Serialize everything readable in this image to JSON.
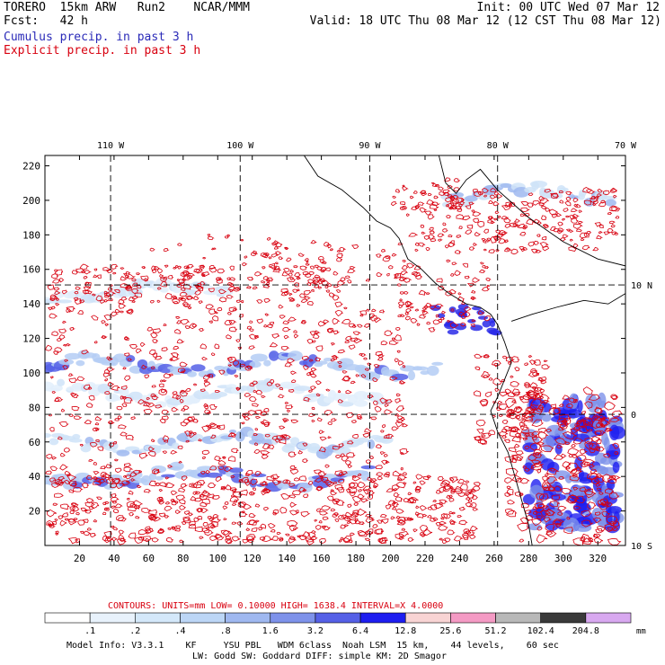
{
  "header": {
    "left_line1": "TORERO  15km ARW   Run2    NCAR/MMM",
    "left_line2": "Fcst:   42 h",
    "right_line1": "Init: 00 UTC Wed 07 Mar 12",
    "right_line2": "Valid: 18 UTC Thu 08 Mar 12 (12 CST Thu 08 Mar 12)",
    "legend_cumulus": "Cumulus precip. in past 3 h",
    "legend_explicit": "Explicit precip. in past 3 h",
    "cumulus_color": "#2a2ab8",
    "explicit_color": "#d8000f"
  },
  "chart_data": {
    "type": "heatmap",
    "title": "",
    "x_ticks": [
      "20",
      "40",
      "60",
      "80",
      "100",
      "120",
      "140",
      "160",
      "180",
      "200",
      "220",
      "240",
      "260",
      "280",
      "300",
      "320"
    ],
    "y_ticks": [
      "20",
      "40",
      "60",
      "80",
      "100",
      "120",
      "140",
      "160",
      "180",
      "200",
      "220"
    ],
    "xlim": [
      0,
      336
    ],
    "ylim": [
      0,
      226
    ],
    "lon_labels": [
      {
        "text": "110 W",
        "x": 38
      },
      {
        "text": "100 W",
        "x": 113
      },
      {
        "text": "90 W",
        "x": 188
      },
      {
        "text": "80 W",
        "x": 262
      },
      {
        "text": "70 W",
        "x": 336
      }
    ],
    "lat_labels": [
      {
        "text": "10 N",
        "y": 151
      },
      {
        "text": "0",
        "y": 76
      },
      {
        "text": "10 S",
        "y": 0
      }
    ],
    "contour_info": {
      "label": "CONTOURS:  UNITS=mm  LOW= 0.10000      HIGH=  1638.4      INTERVAL=X  4.0000"
    },
    "colorbar": {
      "bounds": [
        ".1",
        ".2",
        ".4",
        ".8",
        "1.6",
        "3.2",
        "6.4",
        "12.8",
        "25.6",
        "51.2",
        "102.4",
        "204.8"
      ],
      "colors": [
        "#ffffff",
        "#e8f2fc",
        "#d4e8fa",
        "#bcd6f6",
        "#9fb8f0",
        "#7e92ea",
        "#5560e6",
        "#1e1ef0",
        "#f8d4d4",
        "#f49ac4",
        "#b8b8b8",
        "#3a3a3a",
        "#d8a8f0"
      ],
      "units": "mm"
    },
    "cumulus_bands": [
      {
        "y": 104,
        "x0": 0,
        "x1": 230,
        "intensity": "high"
      },
      {
        "y": 88,
        "x0": 0,
        "x1": 200,
        "intensity": "low"
      },
      {
        "y": 60,
        "x0": 0,
        "x1": 200,
        "intensity": "medium"
      },
      {
        "y": 40,
        "x0": 0,
        "x1": 190,
        "intensity": "high"
      },
      {
        "y": 147,
        "x0": 0,
        "x1": 110,
        "intensity": "low"
      },
      {
        "y": 203,
        "x0": 230,
        "x1": 330,
        "intensity": "medium"
      }
    ]
  },
  "footer": {
    "line1": "Model Info: V3.3.1    KF     YSU PBL   WDM 6class  Noah LSM  15 km,    44 levels,    60 sec",
    "line2": "LW: Godd SW: Goddard DIFF: simple KM: 2D Smagor"
  }
}
